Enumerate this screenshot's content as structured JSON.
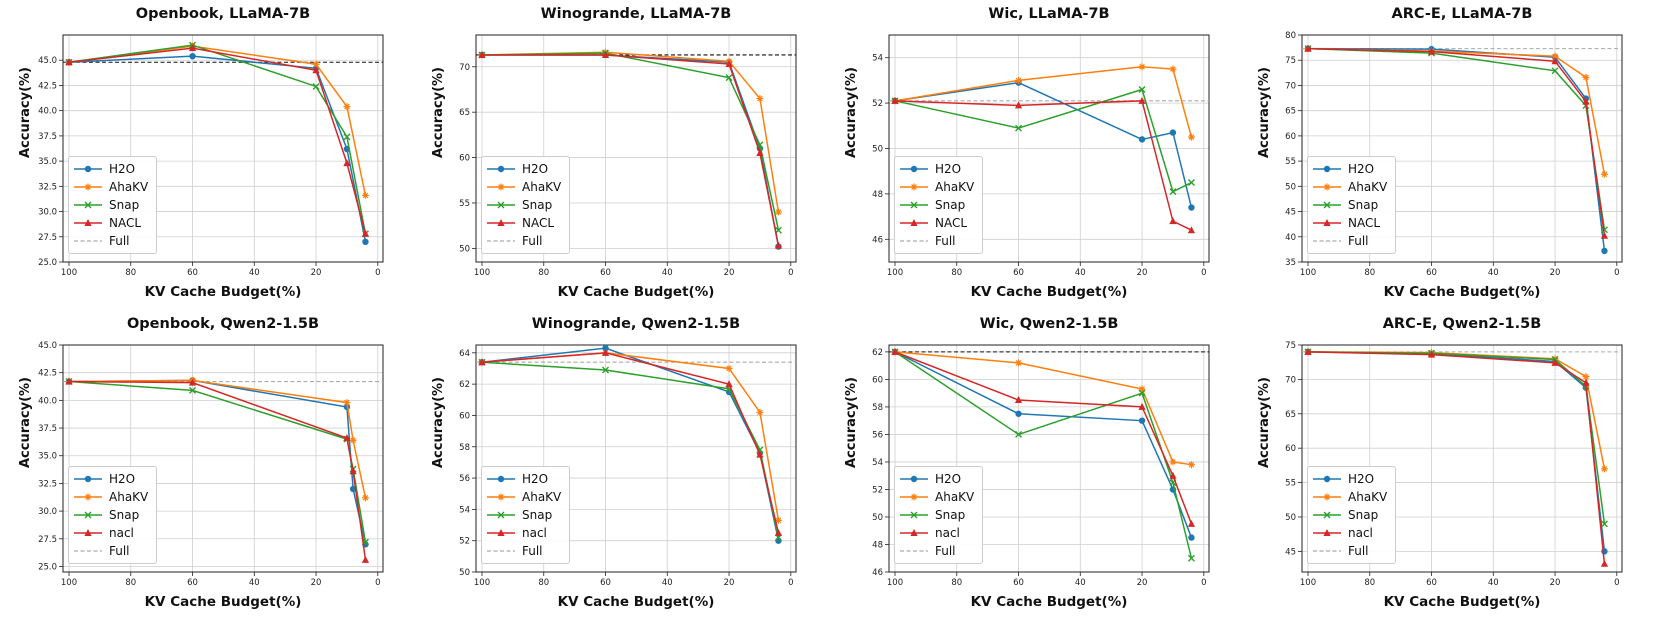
{
  "chart_data": [
    {
      "type": "line",
      "title": "Openbook, LLaMA-7B",
      "xlabel": "KV Cache Budget(%)",
      "ylabel": "Accuracy(%)",
      "xlim": [
        100,
        0
      ],
      "ylim": [
        25,
        47.5
      ],
      "yticks": [
        "25.0",
        "27.5",
        "30.0",
        "32.5",
        "35.0",
        "37.5",
        "40.0",
        "42.5",
        "45.0"
      ],
      "xticks": [
        "100",
        "80",
        "60",
        "40",
        "20",
        "0"
      ],
      "full": 44.8,
      "fullStyle": "black",
      "series": [
        {
          "name": "H2O",
          "x": [
            100,
            60,
            20,
            10,
            4
          ],
          "values": [
            44.8,
            45.4,
            44.2,
            36.2,
            27.0
          ]
        },
        {
          "name": "AhaKV",
          "x": [
            100,
            60,
            20,
            10,
            4
          ],
          "values": [
            44.8,
            46.4,
            44.6,
            40.4,
            31.6
          ]
        },
        {
          "name": "Snap",
          "x": [
            100,
            60,
            20,
            10,
            4
          ],
          "values": [
            44.8,
            46.5,
            42.4,
            37.4,
            27.8
          ]
        },
        {
          "name": "NACL",
          "x": [
            100,
            60,
            20,
            10,
            4
          ],
          "values": [
            44.8,
            46.2,
            44.0,
            34.8,
            27.8
          ]
        }
      ],
      "legend": [
        "H2O",
        "AhaKV",
        "Snap",
        "NACL",
        "Full"
      ]
    },
    {
      "type": "line",
      "title": "Winogrande, LLaMA-7B",
      "xlabel": "KV Cache Budget(%)",
      "ylabel": "Accuracy(%)",
      "xlim": [
        100,
        0
      ],
      "ylim": [
        48.5,
        73.5
      ],
      "yticks": [
        "50",
        "55",
        "60",
        "65",
        "70"
      ],
      "xticks": [
        "100",
        "80",
        "60",
        "40",
        "20",
        "0"
      ],
      "full": 71.3,
      "fullStyle": "black",
      "series": [
        {
          "name": "H2O",
          "x": [
            100,
            60,
            20,
            10,
            4
          ],
          "values": [
            71.3,
            71.3,
            70.5,
            61.0,
            50.2
          ]
        },
        {
          "name": "AhaKV",
          "x": [
            100,
            60,
            20,
            10,
            4
          ],
          "values": [
            71.3,
            71.6,
            70.6,
            66.5,
            54.0
          ]
        },
        {
          "name": "Snap",
          "x": [
            100,
            60,
            20,
            10,
            4
          ],
          "values": [
            71.3,
            71.5,
            68.8,
            61.4,
            52.0
          ]
        },
        {
          "name": "NACL",
          "x": [
            100,
            60,
            20,
            10,
            4
          ],
          "values": [
            71.3,
            71.3,
            70.3,
            60.5,
            50.3
          ]
        }
      ],
      "legend": [
        "H2O",
        "AhaKV",
        "Snap",
        "NACL",
        "Full"
      ]
    },
    {
      "type": "line",
      "title": "Wic, LLaMA-7B",
      "xlabel": "KV Cache Budget(%)",
      "ylabel": "Accuracy(%)",
      "xlim": [
        100,
        0
      ],
      "ylim": [
        45,
        55
      ],
      "yticks": [
        "46",
        "48",
        "50",
        "52",
        "54"
      ],
      "xticks": [
        "100",
        "80",
        "60",
        "40",
        "20",
        "0"
      ],
      "full": 52.1,
      "fullStyle": "gray",
      "series": [
        {
          "name": "H2O",
          "x": [
            100,
            60,
            20,
            10,
            4
          ],
          "values": [
            52.1,
            52.9,
            50.4,
            50.7,
            47.4
          ]
        },
        {
          "name": "AhaKV",
          "x": [
            100,
            60,
            20,
            10,
            4
          ],
          "values": [
            52.1,
            53.0,
            53.6,
            53.5,
            50.5
          ]
        },
        {
          "name": "Snap",
          "x": [
            100,
            60,
            20,
            10,
            4
          ],
          "values": [
            52.1,
            50.9,
            52.6,
            48.1,
            48.5
          ]
        },
        {
          "name": "NACL",
          "x": [
            100,
            60,
            20,
            10,
            4
          ],
          "values": [
            52.1,
            51.9,
            52.1,
            46.8,
            46.4
          ]
        }
      ],
      "legend": [
        "H2O",
        "AhaKV",
        "Snap",
        "NACL",
        "Full"
      ]
    },
    {
      "type": "line",
      "title": "ARC-E, LLaMA-7B",
      "xlabel": "KV Cache Budget(%)",
      "ylabel": "Accuracy(%)",
      "xlim": [
        100,
        0
      ],
      "ylim": [
        35,
        80
      ],
      "yticks": [
        "35",
        "40",
        "45",
        "50",
        "55",
        "60",
        "65",
        "70",
        "75",
        "80"
      ],
      "xticks": [
        "100",
        "80",
        "60",
        "40",
        "20",
        "0"
      ],
      "full": 77.3,
      "fullStyle": "gray",
      "series": [
        {
          "name": "H2O",
          "x": [
            100,
            60,
            20,
            10,
            4
          ],
          "values": [
            77.3,
            77.2,
            75.6,
            67.4,
            37.2
          ]
        },
        {
          "name": "AhaKV",
          "x": [
            100,
            60,
            20,
            10,
            4
          ],
          "values": [
            77.3,
            76.8,
            75.8,
            71.6,
            52.4
          ]
        },
        {
          "name": "Snap",
          "x": [
            100,
            60,
            20,
            10,
            4
          ],
          "values": [
            77.3,
            76.4,
            72.9,
            66.0,
            41.4
          ]
        },
        {
          "name": "NACL",
          "x": [
            100,
            60,
            20,
            10,
            4
          ],
          "values": [
            77.3,
            76.7,
            74.8,
            66.8,
            40.2
          ]
        }
      ],
      "legend": [
        "H2O",
        "AhaKV",
        "Snap",
        "NACL",
        "Full"
      ]
    },
    {
      "type": "line",
      "title": "Openbook, Qwen2-1.5B",
      "xlabel": "KV Cache Budget(%)",
      "ylabel": "Accuracy(%)",
      "xlim": [
        100,
        0
      ],
      "ylim": [
        24.5,
        45
      ],
      "yticks": [
        "25.0",
        "27.5",
        "30.0",
        "32.5",
        "35.0",
        "37.5",
        "40.0",
        "42.5",
        "45.0"
      ],
      "xticks": [
        "100",
        "80",
        "60",
        "40",
        "20",
        "0"
      ],
      "full": 41.7,
      "fullStyle": "gray",
      "series": [
        {
          "name": "H2O",
          "x": [
            100,
            60,
            10,
            8,
            4
          ],
          "values": [
            41.7,
            41.8,
            39.4,
            32.0,
            27.0
          ]
        },
        {
          "name": "AhaKV",
          "x": [
            100,
            60,
            10,
            8,
            4
          ],
          "values": [
            41.7,
            41.8,
            39.8,
            36.4,
            31.2
          ]
        },
        {
          "name": "Snap",
          "x": [
            100,
            60,
            10,
            8,
            4
          ],
          "values": [
            41.7,
            40.9,
            36.5,
            33.8,
            27.2
          ]
        },
        {
          "name": "nacl",
          "x": [
            100,
            60,
            10,
            8,
            4
          ],
          "values": [
            41.7,
            41.6,
            36.6,
            33.6,
            25.6
          ]
        }
      ],
      "legend": [
        "H2O",
        "AhaKV",
        "Snap",
        "nacl",
        "Full"
      ]
    },
    {
      "type": "line",
      "title": "Winogrande, Qwen2-1.5B",
      "xlabel": "KV Cache Budget(%)",
      "ylabel": "Accuracy(%)",
      "xlim": [
        100,
        0
      ],
      "ylim": [
        50,
        64.5
      ],
      "yticks": [
        "50",
        "52",
        "54",
        "56",
        "58",
        "60",
        "62",
        "64"
      ],
      "xticks": [
        "100",
        "80",
        "60",
        "40",
        "20",
        "0"
      ],
      "full": 63.4,
      "fullStyle": "gray",
      "series": [
        {
          "name": "H2O",
          "x": [
            100,
            60,
            20,
            10,
            4
          ],
          "values": [
            63.4,
            64.3,
            61.5,
            57.6,
            52.0
          ]
        },
        {
          "name": "AhaKV",
          "x": [
            100,
            60,
            20,
            10,
            4
          ],
          "values": [
            63.4,
            64.0,
            63.0,
            60.2,
            53.3
          ]
        },
        {
          "name": "Snap",
          "x": [
            100,
            60,
            20,
            10,
            4
          ],
          "values": [
            63.4,
            62.9,
            61.7,
            57.8,
            52.2
          ]
        },
        {
          "name": "nacl",
          "x": [
            100,
            60,
            20,
            10,
            4
          ],
          "values": [
            63.4,
            64.0,
            62.0,
            57.5,
            52.5
          ]
        }
      ],
      "legend": [
        "H2O",
        "AhaKV",
        "Snap",
        "nacl",
        "Full"
      ]
    },
    {
      "type": "line",
      "title": "Wic, Qwen2-1.5B",
      "xlabel": "KV Cache Budget(%)",
      "ylabel": "Accuracy(%)",
      "xlim": [
        100,
        0
      ],
      "ylim": [
        46,
        62.5
      ],
      "yticks": [
        "46",
        "48",
        "50",
        "52",
        "54",
        "56",
        "58",
        "60",
        "62"
      ],
      "xticks": [
        "100",
        "80",
        "60",
        "40",
        "20",
        "0"
      ],
      "full": 62.0,
      "fullStyle": "black",
      "series": [
        {
          "name": "H2O",
          "x": [
            100,
            60,
            20,
            10,
            4
          ],
          "values": [
            62.0,
            57.5,
            57.0,
            52.0,
            48.5
          ]
        },
        {
          "name": "AhaKV",
          "x": [
            100,
            60,
            20,
            10,
            4
          ],
          "values": [
            62.0,
            61.2,
            59.3,
            54.0,
            53.8
          ]
        },
        {
          "name": "Snap",
          "x": [
            100,
            60,
            20,
            10,
            4
          ],
          "values": [
            62.0,
            56.0,
            59.0,
            52.5,
            47.0
          ]
        },
        {
          "name": "nacl",
          "x": [
            100,
            60,
            20,
            10,
            4
          ],
          "values": [
            62.0,
            58.5,
            58.0,
            53.0,
            49.5
          ]
        }
      ],
      "legend": [
        "H2O",
        "AhaKV",
        "Snap",
        "nacl",
        "Full"
      ]
    },
    {
      "type": "line",
      "title": "ARC-E, Qwen2-1.5B",
      "xlabel": "KV Cache Budget(%)",
      "ylabel": "Accuracy(%)",
      "xlim": [
        100,
        0
      ],
      "ylim": [
        42,
        75
      ],
      "yticks": [
        "45",
        "50",
        "55",
        "60",
        "65",
        "70",
        "75"
      ],
      "xticks": [
        "100",
        "80",
        "60",
        "40",
        "20",
        "0"
      ],
      "full": 74.0,
      "fullStyle": "gray",
      "series": [
        {
          "name": "H2O",
          "x": [
            100,
            60,
            20,
            10,
            4
          ],
          "values": [
            74.0,
            73.7,
            72.6,
            68.8,
            45.0
          ]
        },
        {
          "name": "AhaKV",
          "x": [
            100,
            60,
            20,
            10,
            4
          ],
          "values": [
            74.0,
            73.9,
            73.0,
            70.4,
            57.0
          ]
        },
        {
          "name": "Snap",
          "x": [
            100,
            60,
            20,
            10,
            4
          ],
          "values": [
            74.0,
            73.8,
            72.9,
            69.0,
            49.0
          ]
        },
        {
          "name": "nacl",
          "x": [
            100,
            60,
            20,
            10,
            4
          ],
          "values": [
            74.0,
            73.6,
            72.4,
            69.5,
            43.2
          ]
        }
      ],
      "legend": [
        "H2O",
        "AhaKV",
        "Snap",
        "nacl",
        "Full"
      ]
    }
  ],
  "style": {
    "colors": {
      "H2O": "#1f77b4",
      "AhaKV": "#ff7f0e",
      "Snap": "#2ca02c",
      "NACL": "#d62728",
      "nacl": "#d62728",
      "Full": "#aaaaaa"
    },
    "markers": {
      "H2O": "circle",
      "AhaKV": "star",
      "Snap": "x",
      "NACL": "triangle",
      "nacl": "triangle"
    }
  }
}
